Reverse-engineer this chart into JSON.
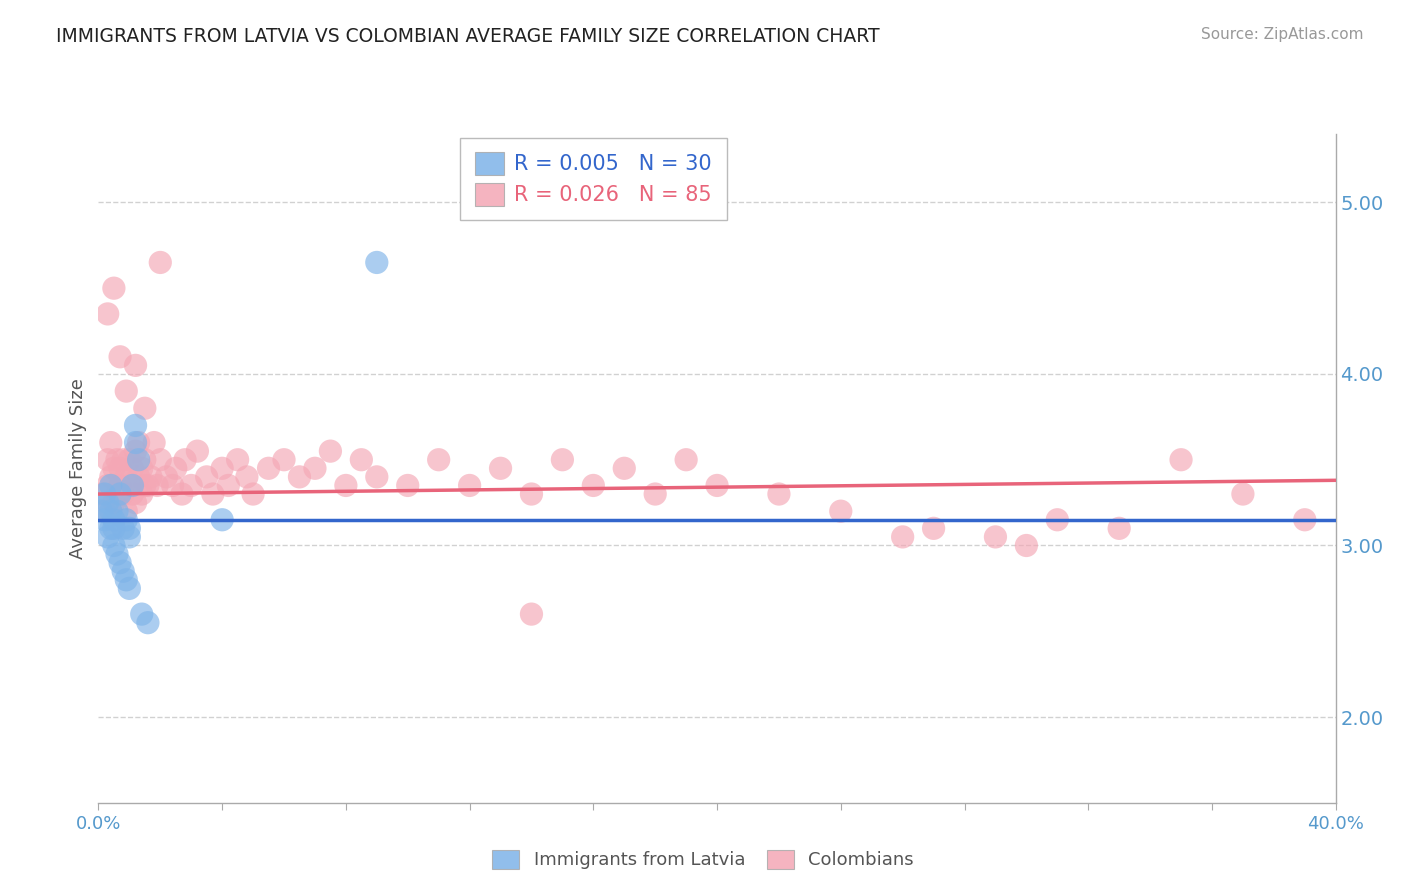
{
  "title": "IMMIGRANTS FROM LATVIA VS COLOMBIAN AVERAGE FAMILY SIZE CORRELATION CHART",
  "source": "Source: ZipAtlas.com",
  "ylabel": "Average Family Size",
  "legend_labels": [
    "Immigrants from Latvia",
    "Colombians"
  ],
  "legend_r": [
    "R = 0.005",
    "N = 30"
  ],
  "legend_r2": [
    "R = 0.026",
    "N = 85"
  ],
  "xlim": [
    0.0,
    0.4
  ],
  "ylim": [
    1.5,
    5.4
  ],
  "yticks": [
    2.0,
    3.0,
    4.0,
    5.0
  ],
  "blue_color": "#7EB3E8",
  "pink_color": "#F4A7B5",
  "blue_line_color": "#3366CC",
  "pink_line_color": "#E8647A",
  "bg_color": "#FFFFFF",
  "grid_color": "#CCCCCC",
  "title_color": "#222222",
  "axis_label_color": "#5599CC",
  "blue_x": [
    0.001,
    0.002,
    0.002,
    0.003,
    0.003,
    0.004,
    0.004,
    0.004,
    0.005,
    0.005,
    0.005,
    0.006,
    0.006,
    0.007,
    0.007,
    0.008,
    0.008,
    0.009,
    0.009,
    0.01,
    0.01,
    0.01,
    0.011,
    0.012,
    0.012,
    0.013,
    0.014,
    0.016,
    0.04,
    0.09
  ],
  "blue_y": [
    3.2,
    3.15,
    3.3,
    3.05,
    3.25,
    3.1,
    3.2,
    3.35,
    3.0,
    3.15,
    3.1,
    3.2,
    2.95,
    3.3,
    2.9,
    3.1,
    2.85,
    3.15,
    2.8,
    3.05,
    2.75,
    3.1,
    3.35,
    3.6,
    3.7,
    3.5,
    2.6,
    2.55,
    3.15,
    4.65
  ],
  "pink_x": [
    0.001,
    0.002,
    0.003,
    0.003,
    0.004,
    0.004,
    0.005,
    0.005,
    0.006,
    0.006,
    0.007,
    0.007,
    0.008,
    0.008,
    0.009,
    0.009,
    0.01,
    0.01,
    0.011,
    0.011,
    0.012,
    0.012,
    0.013,
    0.013,
    0.014,
    0.014,
    0.015,
    0.015,
    0.016,
    0.017,
    0.018,
    0.019,
    0.02,
    0.022,
    0.024,
    0.025,
    0.027,
    0.028,
    0.03,
    0.032,
    0.035,
    0.037,
    0.04,
    0.042,
    0.045,
    0.048,
    0.05,
    0.055,
    0.06,
    0.065,
    0.07,
    0.075,
    0.08,
    0.085,
    0.09,
    0.1,
    0.11,
    0.12,
    0.13,
    0.14,
    0.15,
    0.16,
    0.17,
    0.18,
    0.19,
    0.2,
    0.22,
    0.24,
    0.26,
    0.27,
    0.29,
    0.3,
    0.31,
    0.33,
    0.35,
    0.37,
    0.39,
    0.003,
    0.005,
    0.007,
    0.009,
    0.012,
    0.015,
    0.02,
    0.14
  ],
  "pink_y": [
    3.3,
    3.2,
    3.35,
    3.5,
    3.4,
    3.6,
    3.25,
    3.45,
    3.3,
    3.5,
    3.35,
    3.45,
    3.5,
    3.3,
    3.4,
    3.2,
    3.35,
    3.5,
    3.3,
    3.45,
    3.55,
    3.25,
    3.4,
    3.6,
    3.3,
    3.45,
    3.35,
    3.5,
    3.35,
    3.4,
    3.6,
    3.35,
    3.5,
    3.4,
    3.35,
    3.45,
    3.3,
    3.5,
    3.35,
    3.55,
    3.4,
    3.3,
    3.45,
    3.35,
    3.5,
    3.4,
    3.3,
    3.45,
    3.5,
    3.4,
    3.45,
    3.55,
    3.35,
    3.5,
    3.4,
    3.35,
    3.5,
    3.35,
    3.45,
    3.3,
    3.5,
    3.35,
    3.45,
    3.3,
    3.5,
    3.35,
    3.3,
    3.2,
    3.05,
    3.1,
    3.05,
    3.0,
    3.15,
    3.1,
    3.5,
    3.3,
    3.15,
    4.35,
    4.5,
    4.1,
    3.9,
    4.05,
    3.8,
    4.65,
    2.6
  ],
  "blue_trend_x": [
    0.0,
    0.4
  ],
  "blue_trend_y": [
    3.15,
    3.15
  ],
  "pink_trend_x": [
    0.0,
    0.4
  ],
  "pink_trend_y": [
    3.3,
    3.38
  ]
}
